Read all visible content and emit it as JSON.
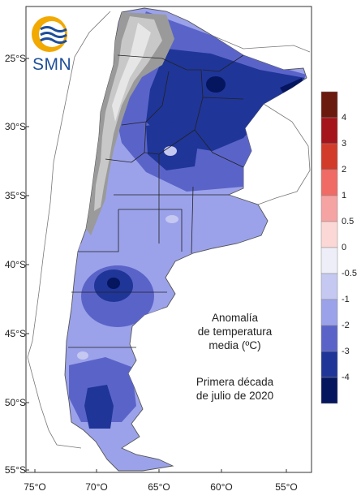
{
  "logo": {
    "text": "SMN",
    "primary_color": "#1d4f9a",
    "accent_color": "#f2a900"
  },
  "map": {
    "latitude_ticks": [
      "25°S",
      "30°S",
      "35°S",
      "40°S",
      "45°S",
      "50°S",
      "55°S"
    ],
    "longitude_ticks": [
      "75°O",
      "70°O",
      "65°O",
      "60°O",
      "55°O"
    ]
  },
  "annotation": {
    "title_lines": [
      "Anomalía",
      "de temperatura",
      "media (ºC)"
    ],
    "period_lines": [
      "Primera década",
      "de julio de 2020"
    ]
  },
  "legend": {
    "labels": [
      "4",
      "3",
      "2",
      "1",
      "0.5",
      "0",
      "-0.5",
      "-1",
      "-2",
      "-3",
      "-4"
    ],
    "colors": [
      "#6b1a10",
      "#a5141b",
      "#d23a2a",
      "#f06a66",
      "#f6a3a3",
      "#fbd8d6",
      "#eeeef8",
      "#c5c8f0",
      "#9ba2ea",
      "#5a64c8",
      "#1f3598",
      "#05155e"
    ]
  }
}
